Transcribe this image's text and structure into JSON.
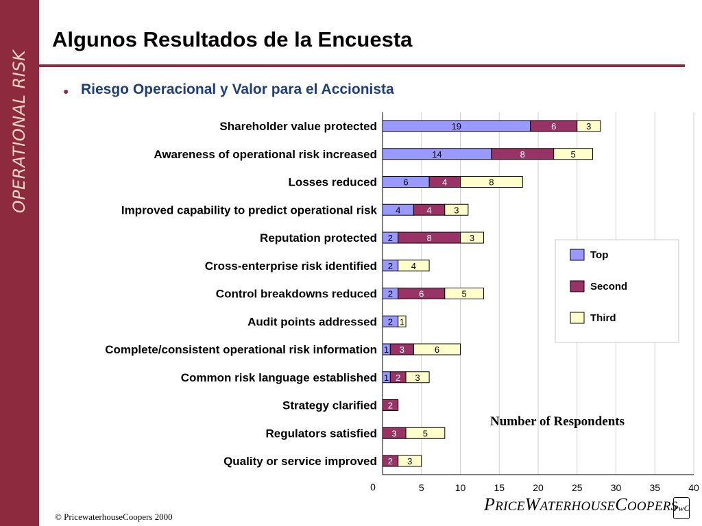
{
  "sidebar": {
    "text": "OPERATIONAL RISK"
  },
  "header": {
    "title": "Algunos Resultados de la Encuesta"
  },
  "bullet": {
    "text": "Riesgo Operacional y Valor para el Accionista"
  },
  "footer": {
    "copyright": "© PricewaterhouseCoopers 2000",
    "logo": "PRICEWATERHOUSECOOPERS",
    "logo_mark": "PwC"
  },
  "colors": {
    "brand": "#8e2a3e",
    "subtitle": "#1c3f7c",
    "top": "#9999ff",
    "second": "#993366",
    "third": "#ffffcc"
  },
  "chart_data": {
    "type": "bar",
    "orientation": "horizontal",
    "stacked": true,
    "categories": [
      "Shareholder value protected",
      "Awareness of operational risk increased",
      "Losses reduced",
      "Improved capability to predict operational risk",
      "Reputation protected",
      "Cross-enterprise risk identified",
      "Control breakdowns reduced",
      "Audit points addressed",
      "Complete/consistent operational risk information",
      "Common risk language established",
      "Strategy clarified",
      "Regulators satisfied",
      "Quality or service improved"
    ],
    "series": [
      {
        "name": "Top",
        "color": "#9999ff",
        "values": [
          19,
          14,
          6,
          4,
          2,
          2,
          2,
          2,
          1,
          1,
          0,
          0,
          0
        ]
      },
      {
        "name": "Second",
        "color": "#993366",
        "values": [
          6,
          8,
          4,
          4,
          8,
          0,
          6,
          0,
          3,
          2,
          2,
          3,
          2
        ]
      },
      {
        "name": "Third",
        "color": "#ffffcc",
        "values": [
          3,
          5,
          8,
          3,
          3,
          4,
          5,
          1,
          6,
          3,
          0,
          5,
          3
        ]
      }
    ],
    "xlabel": "Number of Respondents",
    "xlim": [
      0,
      40
    ],
    "xticks": [
      0,
      5,
      10,
      15,
      20,
      25,
      30,
      35,
      40
    ],
    "grid": "vertical",
    "legend": "right"
  }
}
